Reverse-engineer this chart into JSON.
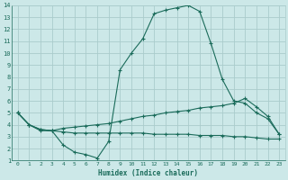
{
  "xlabel": "Humidex (Indice chaleur)",
  "xlim": [
    -0.5,
    23.5
  ],
  "ylim": [
    1,
    14
  ],
  "xticks": [
    0,
    1,
    2,
    3,
    4,
    5,
    6,
    7,
    8,
    9,
    10,
    11,
    12,
    13,
    14,
    15,
    16,
    17,
    18,
    19,
    20,
    21,
    22,
    23
  ],
  "yticks": [
    1,
    2,
    3,
    4,
    5,
    6,
    7,
    8,
    9,
    10,
    11,
    12,
    13,
    14
  ],
  "background_color": "#cce8e8",
  "grid_color": "#aacccc",
  "line_color": "#1a6b5a",
  "line1_x": [
    0,
    1,
    2,
    3,
    4,
    5,
    6,
    7,
    8,
    9,
    10,
    11,
    12,
    13,
    14,
    15,
    16,
    17,
    18,
    19,
    20,
    21,
    22,
    23
  ],
  "line1_y": [
    5.0,
    4.0,
    3.5,
    3.5,
    2.3,
    1.7,
    1.5,
    1.2,
    2.6,
    8.6,
    10.0,
    11.2,
    13.3,
    13.6,
    13.8,
    14.0,
    13.5,
    10.8,
    7.8,
    6.0,
    5.8,
    5.0,
    4.5,
    3.2
  ],
  "line2_x": [
    0,
    1,
    2,
    3,
    4,
    5,
    6,
    7,
    8,
    9,
    10,
    11,
    12,
    13,
    14,
    15,
    16,
    17,
    18,
    19,
    20,
    21,
    22,
    23
  ],
  "line2_y": [
    5.0,
    4.0,
    3.6,
    3.5,
    3.7,
    3.8,
    3.9,
    4.0,
    4.1,
    4.3,
    4.5,
    4.7,
    4.8,
    5.0,
    5.1,
    5.2,
    5.4,
    5.5,
    5.6,
    5.8,
    6.2,
    5.5,
    4.7,
    3.2
  ],
  "line3_x": [
    0,
    1,
    2,
    3,
    4,
    5,
    6,
    7,
    8,
    9,
    10,
    11,
    12,
    13,
    14,
    15,
    16,
    17,
    18,
    19,
    20,
    21,
    22,
    23
  ],
  "line3_y": [
    5.0,
    4.0,
    3.6,
    3.5,
    3.4,
    3.3,
    3.3,
    3.3,
    3.3,
    3.3,
    3.3,
    3.3,
    3.2,
    3.2,
    3.2,
    3.2,
    3.1,
    3.1,
    3.1,
    3.0,
    3.0,
    2.9,
    2.8,
    2.8
  ]
}
